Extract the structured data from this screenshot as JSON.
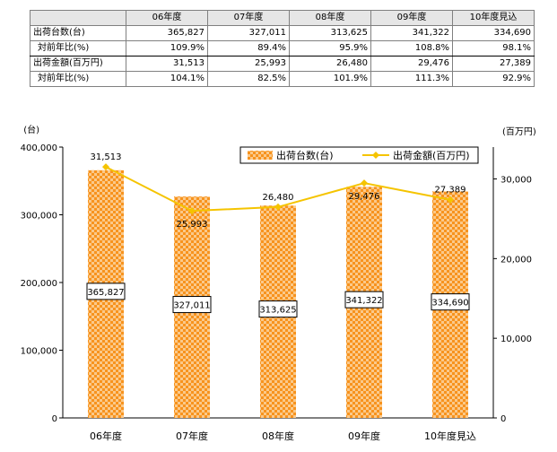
{
  "table": {
    "columns": [
      "06年度",
      "07年度",
      "08年度",
      "09年度",
      "10年度見込"
    ],
    "rows": [
      {
        "label": "出荷台数(台)",
        "values": [
          "365,827",
          "327,011",
          "313,625",
          "341,322",
          "334,690"
        ]
      },
      {
        "label": "対前年比(%)",
        "values": [
          "109.9%",
          "89.4%",
          "95.9%",
          "108.8%",
          "98.1%"
        ]
      },
      {
        "label": "出荷金額(百万円)",
        "values": [
          "31,513",
          "25,993",
          "26,480",
          "29,476",
          "27,389"
        ]
      },
      {
        "label": "対前年比(%)",
        "values": [
          "104.1%",
          "82.5%",
          "101.9%",
          "111.3%",
          "92.9%"
        ]
      }
    ]
  },
  "chart_data": {
    "type": "bar+line",
    "categories": [
      "06年度",
      "07年度",
      "08年度",
      "09年度",
      "10年度見込"
    ],
    "series": [
      {
        "name": "出荷台数(台)",
        "type": "bar",
        "axis": "left",
        "values": [
          365827,
          327011,
          313625,
          341322,
          334690
        ],
        "labels": [
          "365,827",
          "327,011",
          "313,625",
          "341,322",
          "334,690"
        ]
      },
      {
        "name": "出荷金額(百万円)",
        "type": "line",
        "axis": "right",
        "values": [
          31513,
          25993,
          26480,
          29476,
          27389
        ],
        "labels": [
          "31,513",
          "25,993",
          "26,480",
          "29,476",
          "27,389"
        ]
      }
    ],
    "y_left": {
      "unit": "(台)",
      "ylim": [
        0,
        400000
      ],
      "ticks": [
        0,
        100000,
        200000,
        300000,
        400000
      ],
      "tick_labels": [
        "0",
        "100,000",
        "200,000",
        "300,000",
        "400,000"
      ]
    },
    "y_right": {
      "unit": "(百万円)",
      "ylim": [
        0,
        34000
      ],
      "ticks": [
        0,
        10000,
        20000,
        30000
      ],
      "tick_labels": [
        "0",
        "10,000",
        "20,000",
        "30,000"
      ]
    },
    "legend_position": "top-right",
    "grid": false,
    "colors": {
      "bar": "#f7931e",
      "bar_light": "#fbc98a",
      "line": "#f5c400"
    }
  }
}
